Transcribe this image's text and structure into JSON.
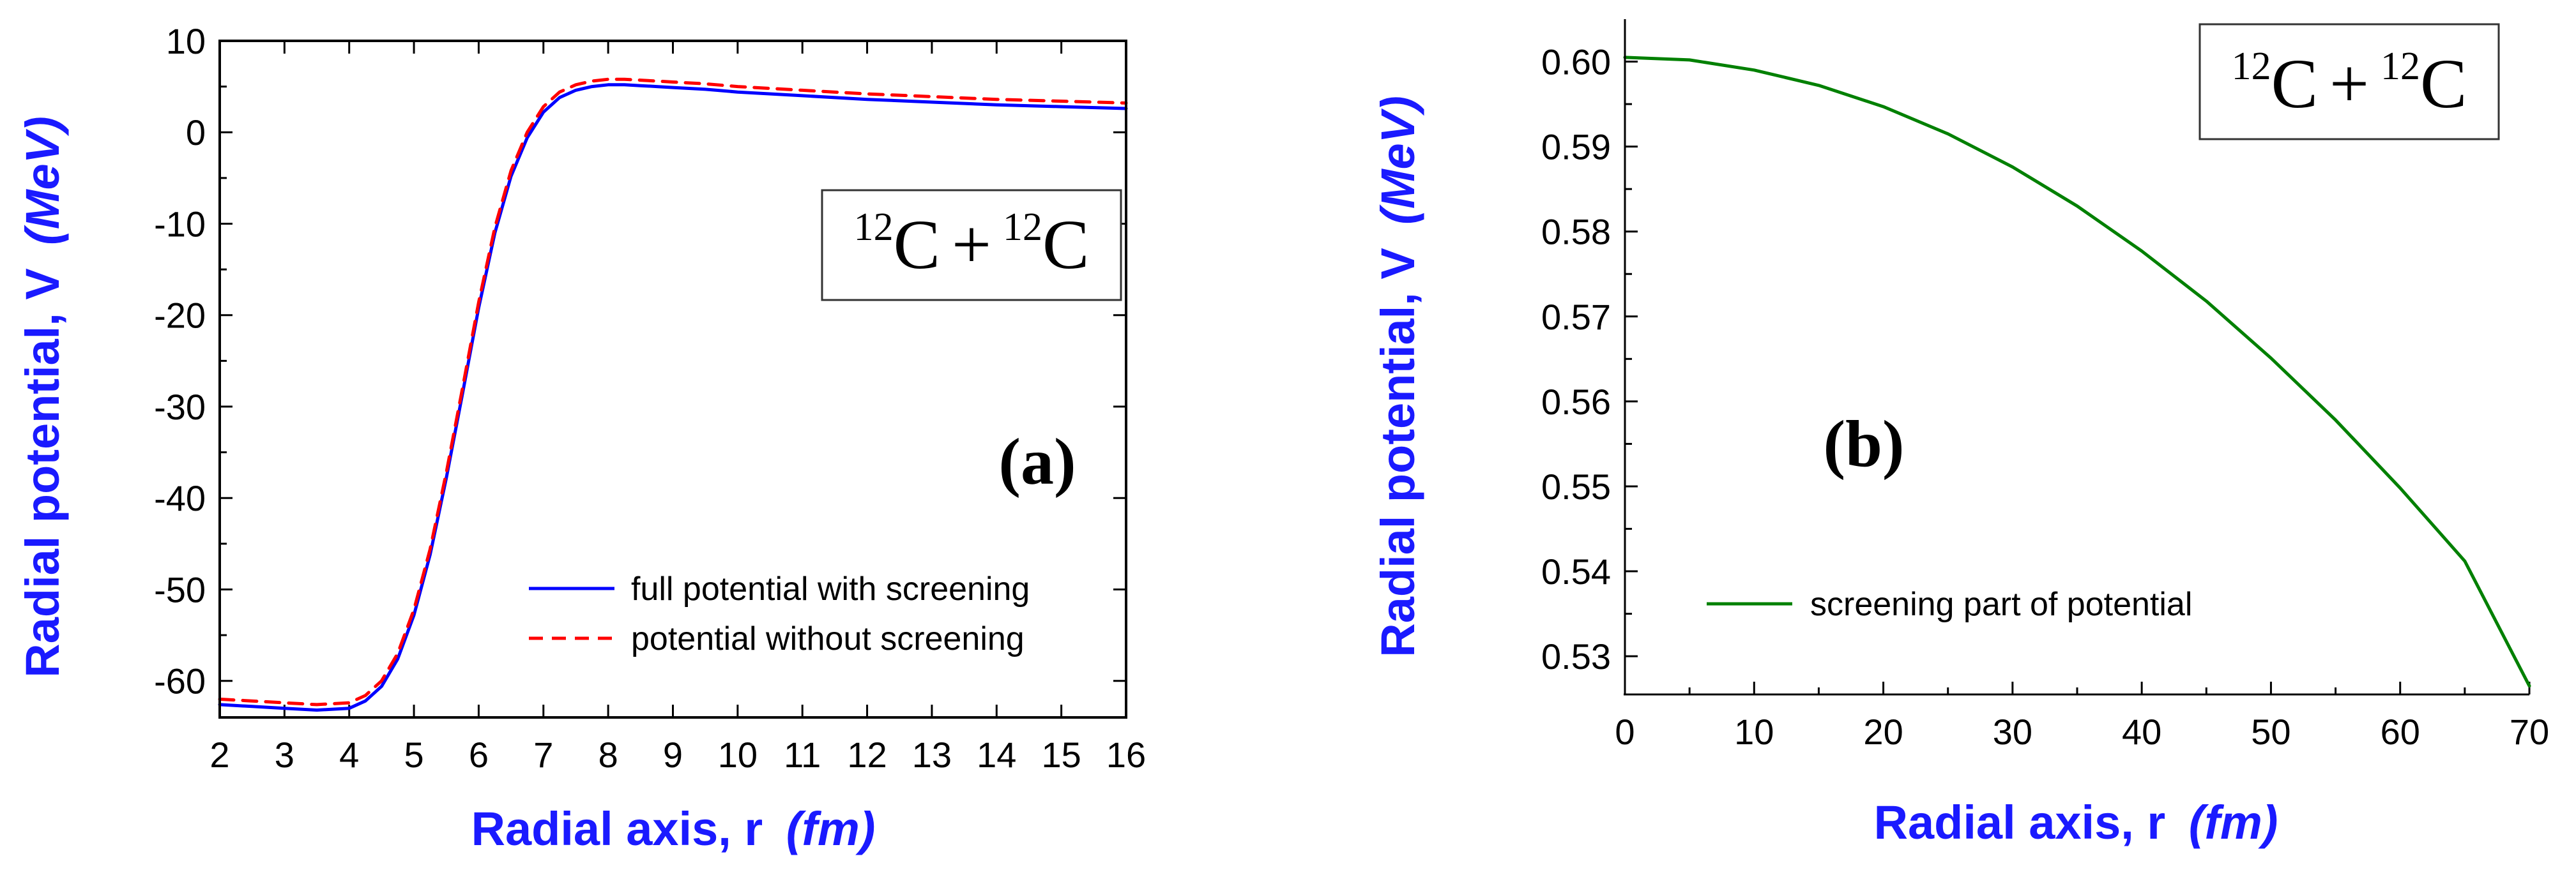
{
  "chart_data": [
    {
      "type": "line",
      "panel_label": "(a)",
      "reaction_box": {
        "mass": "12",
        "sym": "C",
        "op": "+"
      },
      "xlabel": "Radial axis, r",
      "xlabel_unit": "(fm)",
      "ylabel": "Radial potential, V",
      "ylabel_unit": "(MeV)",
      "xlim": [
        2,
        16
      ],
      "ylim": [
        -64,
        10
      ],
      "xticks": [
        2,
        3,
        4,
        5,
        6,
        7,
        8,
        9,
        10,
        11,
        12,
        13,
        14,
        15,
        16
      ],
      "xtick_labels": [
        "2",
        "3",
        "4",
        "5",
        "6",
        "7",
        "8",
        "9",
        "10",
        "11",
        "12",
        "13",
        "14",
        "15",
        "16"
      ],
      "yticks": [
        -60,
        -50,
        -40,
        -30,
        -20,
        -10,
        0,
        10
      ],
      "ytick_labels": [
        "-60",
        "-50",
        "-40",
        "-30",
        "-20",
        "-10",
        "0",
        "10"
      ],
      "legend_position": "lower-right",
      "series": [
        {
          "name": "full potential with screening",
          "color": "#0000ff",
          "dash": "solid",
          "x": [
            2,
            2.5,
            3,
            3.5,
            4,
            4.25,
            4.5,
            4.75,
            5,
            5.25,
            5.5,
            5.75,
            6,
            6.25,
            6.5,
            6.75,
            7,
            7.25,
            7.5,
            7.75,
            8,
            8.25,
            8.5,
            8.75,
            9,
            9.5,
            10,
            11,
            12,
            13,
            14,
            15,
            16
          ],
          "y": [
            -62.6,
            -62.8,
            -63.0,
            -63.2,
            -63.0,
            -62.2,
            -60.6,
            -57.6,
            -52.8,
            -46.2,
            -37.8,
            -28.6,
            -19.2,
            -11.0,
            -4.8,
            -0.6,
            2.2,
            3.8,
            4.6,
            5.0,
            5.2,
            5.2,
            5.1,
            5.0,
            4.9,
            4.7,
            4.4,
            4.0,
            3.6,
            3.3,
            3.0,
            2.8,
            2.6
          ]
        },
        {
          "name": "potential without screening",
          "color": "#ff0000",
          "dash": "dashed",
          "x": [
            2,
            2.5,
            3,
            3.5,
            4,
            4.25,
            4.5,
            4.75,
            5,
            5.25,
            5.5,
            5.75,
            6,
            6.25,
            6.5,
            6.75,
            7,
            7.25,
            7.5,
            7.75,
            8,
            8.25,
            8.5,
            8.75,
            9,
            9.5,
            10,
            11,
            12,
            13,
            14,
            15,
            16
          ],
          "y": [
            -62.0,
            -62.2,
            -62.4,
            -62.6,
            -62.4,
            -61.6,
            -60.0,
            -57.0,
            -52.2,
            -45.6,
            -37.2,
            -28.0,
            -18.6,
            -10.4,
            -4.2,
            0.0,
            2.8,
            4.4,
            5.2,
            5.6,
            5.8,
            5.8,
            5.7,
            5.6,
            5.5,
            5.3,
            5.0,
            4.6,
            4.2,
            3.9,
            3.6,
            3.4,
            3.2
          ]
        }
      ]
    },
    {
      "type": "line",
      "panel_label": "(b)",
      "reaction_box": {
        "mass": "12",
        "sym": "C",
        "op": "+"
      },
      "xlabel": "Radial axis, r",
      "xlabel_unit": "(fm)",
      "ylabel": "Radial potential, V",
      "ylabel_unit": "(MeV)",
      "xlim": [
        0,
        70
      ],
      "ylim": [
        0.5255,
        0.605
      ],
      "xticks": [
        0,
        10,
        20,
        30,
        40,
        50,
        60,
        70
      ],
      "xtick_labels": [
        "0",
        "10",
        "20",
        "30",
        "40",
        "50",
        "60",
        "70"
      ],
      "yticks": [
        0.53,
        0.54,
        0.55,
        0.56,
        0.57,
        0.58,
        0.59,
        0.6
      ],
      "ytick_labels": [
        "0.53",
        "0.54",
        "0.55",
        "0.56",
        "0.57",
        "0.58",
        "0.59",
        "0.60"
      ],
      "legend_position": "lower-left",
      "series": [
        {
          "name": "screening part of potential",
          "color": "#008000",
          "dash": "solid",
          "x": [
            0,
            5,
            10,
            15,
            20,
            25,
            30,
            35,
            40,
            45,
            50,
            55,
            60,
            65,
            70
          ],
          "y": [
            0.6005,
            0.6002,
            0.599,
            0.5972,
            0.5947,
            0.5915,
            0.5876,
            0.583,
            0.5777,
            0.5718,
            0.5651,
            0.5578,
            0.5498,
            0.5412,
            0.5265
          ]
        }
      ]
    }
  ]
}
